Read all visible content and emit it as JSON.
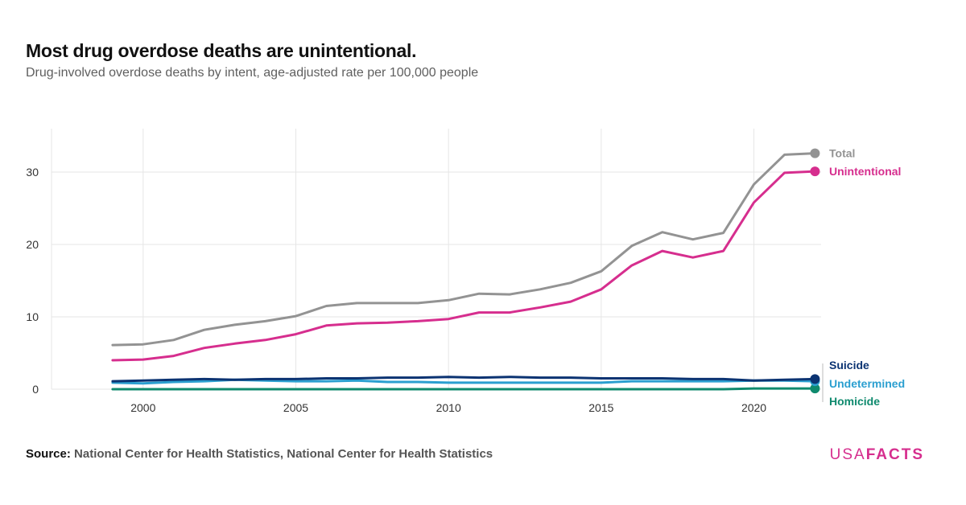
{
  "header": {
    "title": "Most drug overdose deaths are unintentional.",
    "subtitle": "Drug-involved overdose deaths by intent, age-adjusted rate per 100,000 people"
  },
  "footer": {
    "source_label": "Source:",
    "source_text": "National Center for Health Statistics, National Center for Health Statistics",
    "logo_usa": "USA",
    "logo_facts": "FACTS"
  },
  "colors": {
    "total": "#939393",
    "unintentional": "#d62e8e",
    "suicide": "#0b3372",
    "undetermined": "#2b9fd0",
    "homicide": "#0f8a6e",
    "grid": "#e6e6e6",
    "axis_text": "#333333"
  },
  "chart_data": {
    "type": "line",
    "x": [
      1999,
      2000,
      2001,
      2002,
      2003,
      2004,
      2005,
      2006,
      2007,
      2008,
      2009,
      2010,
      2011,
      2012,
      2013,
      2014,
      2015,
      2016,
      2017,
      2018,
      2019,
      2020,
      2021,
      2022
    ],
    "series": [
      {
        "name": "Total",
        "key": "total",
        "values": [
          6.1,
          6.2,
          6.8,
          8.2,
          8.9,
          9.4,
          10.1,
          11.5,
          11.9,
          11.9,
          11.9,
          12.3,
          13.2,
          13.1,
          13.8,
          14.7,
          16.3,
          19.8,
          21.7,
          20.7,
          21.6,
          28.3,
          32.4,
          32.6
        ]
      },
      {
        "name": "Unintentional",
        "key": "unintentional",
        "values": [
          4.0,
          4.1,
          4.6,
          5.7,
          6.3,
          6.8,
          7.6,
          8.8,
          9.1,
          9.2,
          9.4,
          9.7,
          10.6,
          10.6,
          11.3,
          12.1,
          13.8,
          17.1,
          19.1,
          18.2,
          19.1,
          25.8,
          29.9,
          30.1
        ]
      },
      {
        "name": "Suicide",
        "key": "suicide",
        "values": [
          1.1,
          1.2,
          1.3,
          1.4,
          1.3,
          1.4,
          1.4,
          1.5,
          1.5,
          1.6,
          1.6,
          1.7,
          1.6,
          1.7,
          1.6,
          1.6,
          1.5,
          1.5,
          1.5,
          1.4,
          1.4,
          1.2,
          1.3,
          1.4
        ]
      },
      {
        "name": "Undetermined",
        "key": "undetermined",
        "values": [
          0.9,
          0.8,
          1.0,
          1.1,
          1.3,
          1.2,
          1.1,
          1.1,
          1.2,
          1.0,
          1.0,
          0.9,
          0.9,
          0.9,
          0.9,
          0.9,
          0.9,
          1.1,
          1.1,
          1.1,
          1.1,
          1.2,
          1.2,
          1.1
        ]
      },
      {
        "name": "Homicide",
        "key": "homicide",
        "values": [
          0.0,
          0.0,
          0.0,
          0.0,
          0.0,
          0.0,
          0.0,
          0.0,
          0.0,
          0.0,
          0.0,
          0.0,
          0.0,
          0.0,
          0.0,
          0.0,
          0.0,
          0.0,
          0.0,
          0.0,
          0.0,
          0.1,
          0.1,
          0.1
        ]
      }
    ],
    "x_ticks": [
      2000,
      2005,
      2010,
      2015,
      2020
    ],
    "y_ticks": [
      0,
      10,
      20,
      30
    ],
    "xlim": [
      1997,
      2022.2
    ],
    "ylim": [
      0,
      36
    ],
    "grid": true,
    "legend": "direct labels at right end of lines"
  }
}
